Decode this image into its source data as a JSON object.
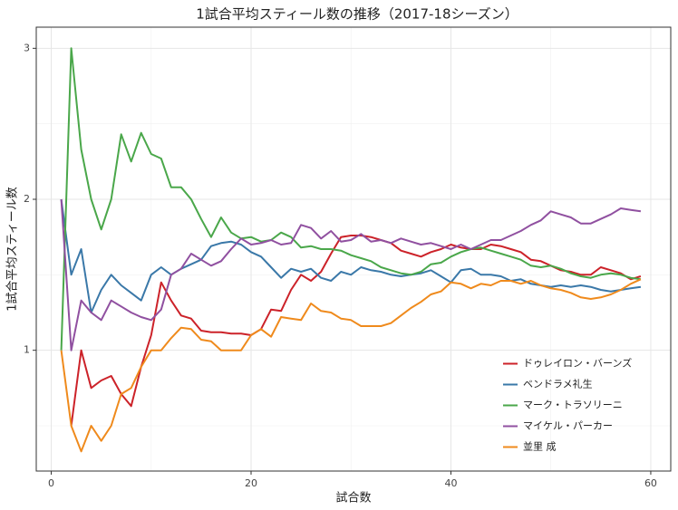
{
  "chart_data": {
    "type": "line",
    "title": "1試合平均スティール数の推移（2017-18シーズン）",
    "x_label": "試合数",
    "y_label": "1試合平均スティール数",
    "x": [
      1,
      2,
      3,
      4,
      5,
      6,
      7,
      8,
      9,
      10,
      11,
      12,
      13,
      14,
      15,
      16,
      17,
      18,
      19,
      20,
      21,
      22,
      23,
      24,
      25,
      26,
      27,
      28,
      29,
      30,
      31,
      32,
      33,
      34,
      35,
      36,
      37,
      38,
      39,
      40,
      41,
      42,
      43,
      44,
      45,
      46,
      47,
      48,
      49,
      50,
      51,
      52,
      53,
      54,
      55,
      56,
      57,
      58,
      59
    ],
    "series": [
      {
        "name": "ドゥレイロン・バーンズ",
        "color": "#cc2229",
        "values": [
          null,
          0.5,
          1.0,
          0.75,
          0.8,
          0.83,
          0.71,
          0.63,
          0.89,
          1.1,
          1.45,
          1.33,
          1.23,
          1.21,
          1.13,
          1.12,
          1.12,
          1.11,
          1.11,
          1.1,
          1.14,
          1.27,
          1.26,
          1.4,
          1.5,
          1.46,
          1.52,
          1.64,
          1.75,
          1.76,
          1.76,
          1.75,
          1.73,
          1.71,
          1.66,
          1.64,
          1.62,
          1.65,
          1.67,
          1.7,
          1.68,
          1.67,
          1.67,
          1.7,
          1.69,
          1.67,
          1.65,
          1.6,
          1.59,
          1.56,
          1.53,
          1.52,
          1.5,
          1.5,
          1.55,
          1.53,
          1.51,
          1.47,
          1.49
        ]
      },
      {
        "name": "ベンドラメ礼生",
        "color": "#3a78a8",
        "values": [
          2.0,
          1.5,
          1.67,
          1.25,
          1.4,
          1.5,
          1.43,
          1.38,
          1.33,
          1.5,
          1.55,
          1.5,
          1.54,
          1.57,
          1.6,
          1.69,
          1.71,
          1.72,
          1.7,
          1.65,
          1.62,
          1.55,
          1.48,
          1.54,
          1.52,
          1.54,
          1.48,
          1.46,
          1.52,
          1.5,
          1.55,
          1.53,
          1.52,
          1.5,
          1.49,
          1.5,
          1.51,
          1.53,
          1.49,
          1.45,
          1.53,
          1.54,
          1.5,
          1.5,
          1.49,
          1.46,
          1.47,
          1.44,
          1.43,
          1.42,
          1.43,
          1.42,
          1.43,
          1.42,
          1.4,
          1.39,
          1.4,
          1.41,
          1.42
        ]
      },
      {
        "name": "マーク・トラソリーニ",
        "color": "#4aa74a",
        "values": [
          1.0,
          3.0,
          2.33,
          2.0,
          1.8,
          2.0,
          2.43,
          2.25,
          2.44,
          2.3,
          2.27,
          2.08,
          2.08,
          2.0,
          1.87,
          1.75,
          1.88,
          1.78,
          1.74,
          1.75,
          1.72,
          1.73,
          1.78,
          1.75,
          1.68,
          1.69,
          1.67,
          1.67,
          1.66,
          1.63,
          1.61,
          1.59,
          1.55,
          1.53,
          1.51,
          1.5,
          1.52,
          1.57,
          1.58,
          1.62,
          1.65,
          1.67,
          1.68,
          1.66,
          1.64,
          1.62,
          1.6,
          1.56,
          1.55,
          1.56,
          1.54,
          1.51,
          1.49,
          1.48,
          1.5,
          1.51,
          1.5,
          1.48,
          1.47
        ]
      },
      {
        "name": "マイケル・パーカー",
        "color": "#9050a0",
        "values": [
          2.0,
          1.0,
          1.33,
          1.25,
          1.2,
          1.33,
          1.29,
          1.25,
          1.22,
          1.2,
          1.27,
          1.5,
          1.54,
          1.64,
          1.6,
          1.56,
          1.59,
          1.67,
          1.74,
          1.7,
          1.71,
          1.73,
          1.7,
          1.71,
          1.83,
          1.81,
          1.74,
          1.79,
          1.72,
          1.73,
          1.77,
          1.72,
          1.73,
          1.71,
          1.74,
          1.72,
          1.7,
          1.71,
          1.69,
          1.67,
          1.7,
          1.67,
          1.7,
          1.73,
          1.73,
          1.76,
          1.79,
          1.83,
          1.86,
          1.92,
          1.9,
          1.88,
          1.84,
          1.84,
          1.87,
          1.9,
          1.94,
          1.93,
          1.92
        ]
      },
      {
        "name": "並里 成",
        "color": "#ef8a1c",
        "values": [
          1.0,
          0.5,
          0.33,
          0.5,
          0.4,
          0.5,
          0.71,
          0.75,
          0.89,
          1.0,
          1.0,
          1.08,
          1.15,
          1.14,
          1.07,
          1.06,
          1.0,
          1.0,
          1.0,
          1.1,
          1.14,
          1.09,
          1.22,
          1.21,
          1.2,
          1.31,
          1.26,
          1.25,
          1.21,
          1.2,
          1.16,
          1.16,
          1.16,
          1.18,
          1.23,
          1.28,
          1.32,
          1.37,
          1.39,
          1.45,
          1.44,
          1.41,
          1.44,
          1.43,
          1.46,
          1.46,
          1.44,
          1.46,
          1.43,
          1.41,
          1.4,
          1.38,
          1.35,
          1.34,
          1.35,
          1.37,
          1.4,
          1.44,
          1.47
        ]
      }
    ],
    "xlim": [
      -1.5,
      62.0
    ],
    "ylim": [
      0.2,
      3.14
    ],
    "xticks": [
      0,
      20,
      40,
      60
    ],
    "yticks": [
      1,
      2,
      3
    ],
    "minor_xticks": [
      10,
      30,
      50
    ],
    "minor_yticks": [
      0.5,
      1.5,
      2.5
    ],
    "grid": true,
    "legend": "bottom-right"
  }
}
